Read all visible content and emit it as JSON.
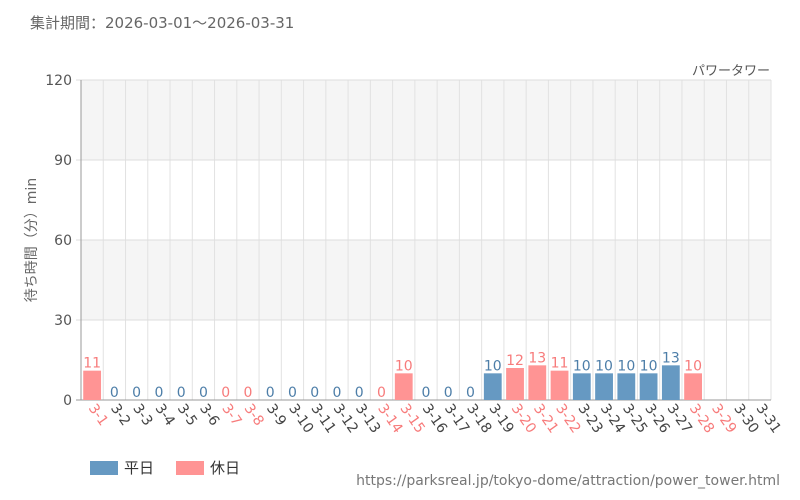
{
  "header": {
    "period": "集計期間：2026-03-01～2026-03-31",
    "ride_name": "パワータワー"
  },
  "legend": {
    "weekday": "平日",
    "holiday": "休日"
  },
  "source_url": "https://parksreal.jp/tokyo-dome/attraction/power_tower.html",
  "colors": {
    "weekday": "#6699c2",
    "holiday": "#ff9494",
    "weekday_label": "#4d7ea8",
    "holiday_label": "#f77b7b"
  },
  "chart_data": {
    "type": "bar",
    "ylabel": "待ち時間（分）min",
    "ylim": [
      0,
      120
    ],
    "yticks": [
      0,
      30,
      60,
      90,
      120
    ],
    "grid": true,
    "legend_position": "bottom-left",
    "categories": [
      "3-1",
      "3-2",
      "3-3",
      "3-4",
      "3-5",
      "3-6",
      "3-7",
      "3-8",
      "3-9",
      "3-10",
      "3-11",
      "3-12",
      "3-13",
      "3-14",
      "3-15",
      "3-16",
      "3-17",
      "3-18",
      "3-19",
      "3-20",
      "3-21",
      "3-22",
      "3-23",
      "3-24",
      "3-25",
      "3-26",
      "3-27",
      "3-28",
      "3-29",
      "3-30",
      "3-31"
    ],
    "day_types": [
      "holiday",
      "weekday",
      "weekday",
      "weekday",
      "weekday",
      "weekday",
      "holiday",
      "holiday",
      "weekday",
      "weekday",
      "weekday",
      "weekday",
      "weekday",
      "holiday",
      "holiday",
      "weekday",
      "weekday",
      "weekday",
      "weekday",
      "holiday",
      "holiday",
      "holiday",
      "weekday",
      "weekday",
      "weekday",
      "weekday",
      "weekday",
      "holiday",
      "holiday",
      "weekday",
      "weekday"
    ],
    "values": [
      11,
      0,
      0,
      0,
      0,
      0,
      0,
      0,
      0,
      0,
      0,
      0,
      0,
      0,
      10,
      0,
      0,
      0,
      10,
      12,
      13,
      11,
      10,
      10,
      10,
      10,
      13,
      10,
      null,
      null,
      null
    ]
  }
}
